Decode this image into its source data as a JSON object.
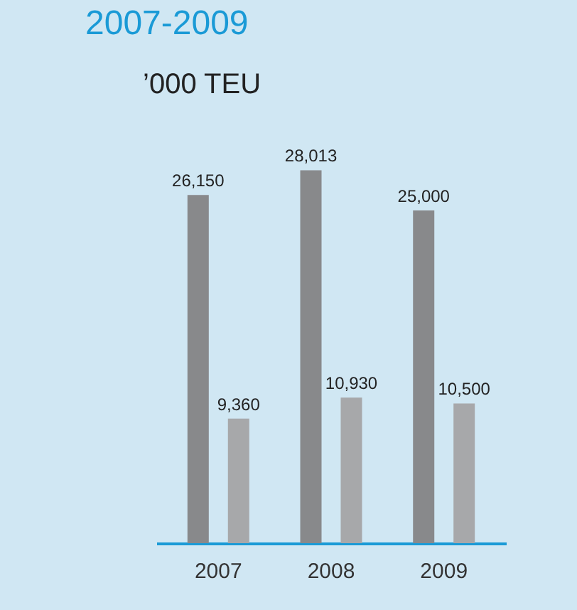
{
  "chart_data": {
    "type": "bar",
    "title": "2007-2009",
    "ylabel": "’000 TEU",
    "categories": [
      "2007",
      "2008",
      "2009"
    ],
    "series": [
      {
        "color": "#88898b",
        "values": [
          26150,
          28013,
          25000
        ],
        "value_labels": [
          "26,150",
          "28,013",
          "25,000"
        ]
      },
      {
        "color": "#a7a8aa",
        "values": [
          9360,
          10930,
          10500
        ],
        "value_labels": [
          "9,360",
          "10,930",
          "10,500"
        ]
      }
    ],
    "grid": false,
    "legend": false
  }
}
